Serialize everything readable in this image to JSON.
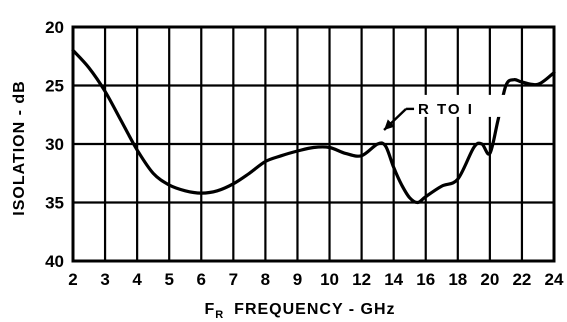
{
  "chart_data": {
    "type": "line",
    "xlabel": "FREQUENCY - GHz",
    "xlabel_prefix": "F",
    "xlabel_subscript": "R",
    "ylabel": "ISOLATION - dB",
    "ylim": [
      20,
      40
    ],
    "y_inverted": true,
    "y_ticks": [
      20,
      25,
      30,
      35,
      40
    ],
    "x_ticks": [
      2,
      3,
      4,
      5,
      6,
      7,
      8,
      9,
      10,
      12,
      14,
      16,
      18,
      20,
      22,
      24
    ],
    "x_tick_labels": [
      "2",
      "3",
      "4",
      "5",
      "6",
      "7",
      "8",
      "9",
      "10",
      "12",
      "14",
      "16",
      "18",
      "20",
      "22",
      "24"
    ],
    "grid": true,
    "annotation": "R TO I",
    "annotation_arrow_target": {
      "x": 13.4,
      "y": 28.8
    },
    "series": [
      {
        "points": [
          [
            2,
            22.0
          ],
          [
            2.5,
            23.5
          ],
          [
            3,
            25.5
          ],
          [
            3.5,
            28.0
          ],
          [
            4,
            30.5
          ],
          [
            4.5,
            32.5
          ],
          [
            5,
            33.5
          ],
          [
            5.5,
            34.0
          ],
          [
            6,
            34.2
          ],
          [
            6.5,
            34.0
          ],
          [
            7,
            33.4
          ],
          [
            7.5,
            32.5
          ],
          [
            8,
            31.5
          ],
          [
            8.5,
            31.0
          ],
          [
            9,
            30.6
          ],
          [
            9.5,
            30.3
          ],
          [
            10,
            30.3
          ],
          [
            11,
            30.8
          ],
          [
            12,
            31.0
          ],
          [
            13,
            30.0
          ],
          [
            13.5,
            30.2
          ],
          [
            14,
            32.0
          ],
          [
            14.5,
            33.5
          ],
          [
            15,
            34.6
          ],
          [
            15.5,
            35.0
          ],
          [
            16,
            34.5
          ],
          [
            17,
            33.6
          ],
          [
            18,
            33.0
          ],
          [
            19,
            30.3
          ],
          [
            19.5,
            30.0
          ],
          [
            20,
            30.8
          ],
          [
            20.5,
            28.0
          ],
          [
            21,
            25.0
          ],
          [
            21.5,
            24.5
          ],
          [
            22,
            24.7
          ],
          [
            23,
            24.9
          ],
          [
            24,
            23.9
          ]
        ]
      }
    ]
  }
}
